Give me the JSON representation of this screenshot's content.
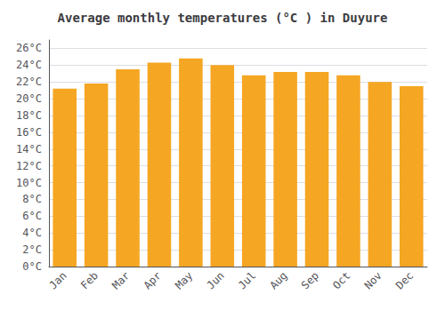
{
  "chart_data": {
    "type": "bar",
    "title": "Average monthly temperatures (°C ) in Duyure",
    "categories": [
      "Jan",
      "Feb",
      "Mar",
      "Apr",
      "May",
      "Jun",
      "Jul",
      "Aug",
      "Sep",
      "Oct",
      "Nov",
      "Dec"
    ],
    "values": [
      21.2,
      21.8,
      23.5,
      24.3,
      24.8,
      24.0,
      22.8,
      23.2,
      23.2,
      22.8,
      22.0,
      21.5
    ],
    "color": "#F5A623",
    "ylim": [
      0,
      27
    ],
    "yticks": [
      {
        "value": 0,
        "label": "0°C"
      },
      {
        "value": 2,
        "label": "2°C"
      },
      {
        "value": 4,
        "label": "4°C"
      },
      {
        "value": 6,
        "label": "6°C"
      },
      {
        "value": 8,
        "label": "8°C"
      },
      {
        "value": 10,
        "label": "10°C"
      },
      {
        "value": 12,
        "label": "12°C"
      },
      {
        "value": 14,
        "label": "14°C"
      },
      {
        "value": 16,
        "label": "16°C"
      },
      {
        "value": 18,
        "label": "18°C"
      },
      {
        "value": 20,
        "label": "20°C"
      },
      {
        "value": 22,
        "label": "22°C"
      },
      {
        "value": 24,
        "label": "24°C"
      },
      {
        "value": 26,
        "label": "26°C"
      }
    ],
    "grid": true
  }
}
